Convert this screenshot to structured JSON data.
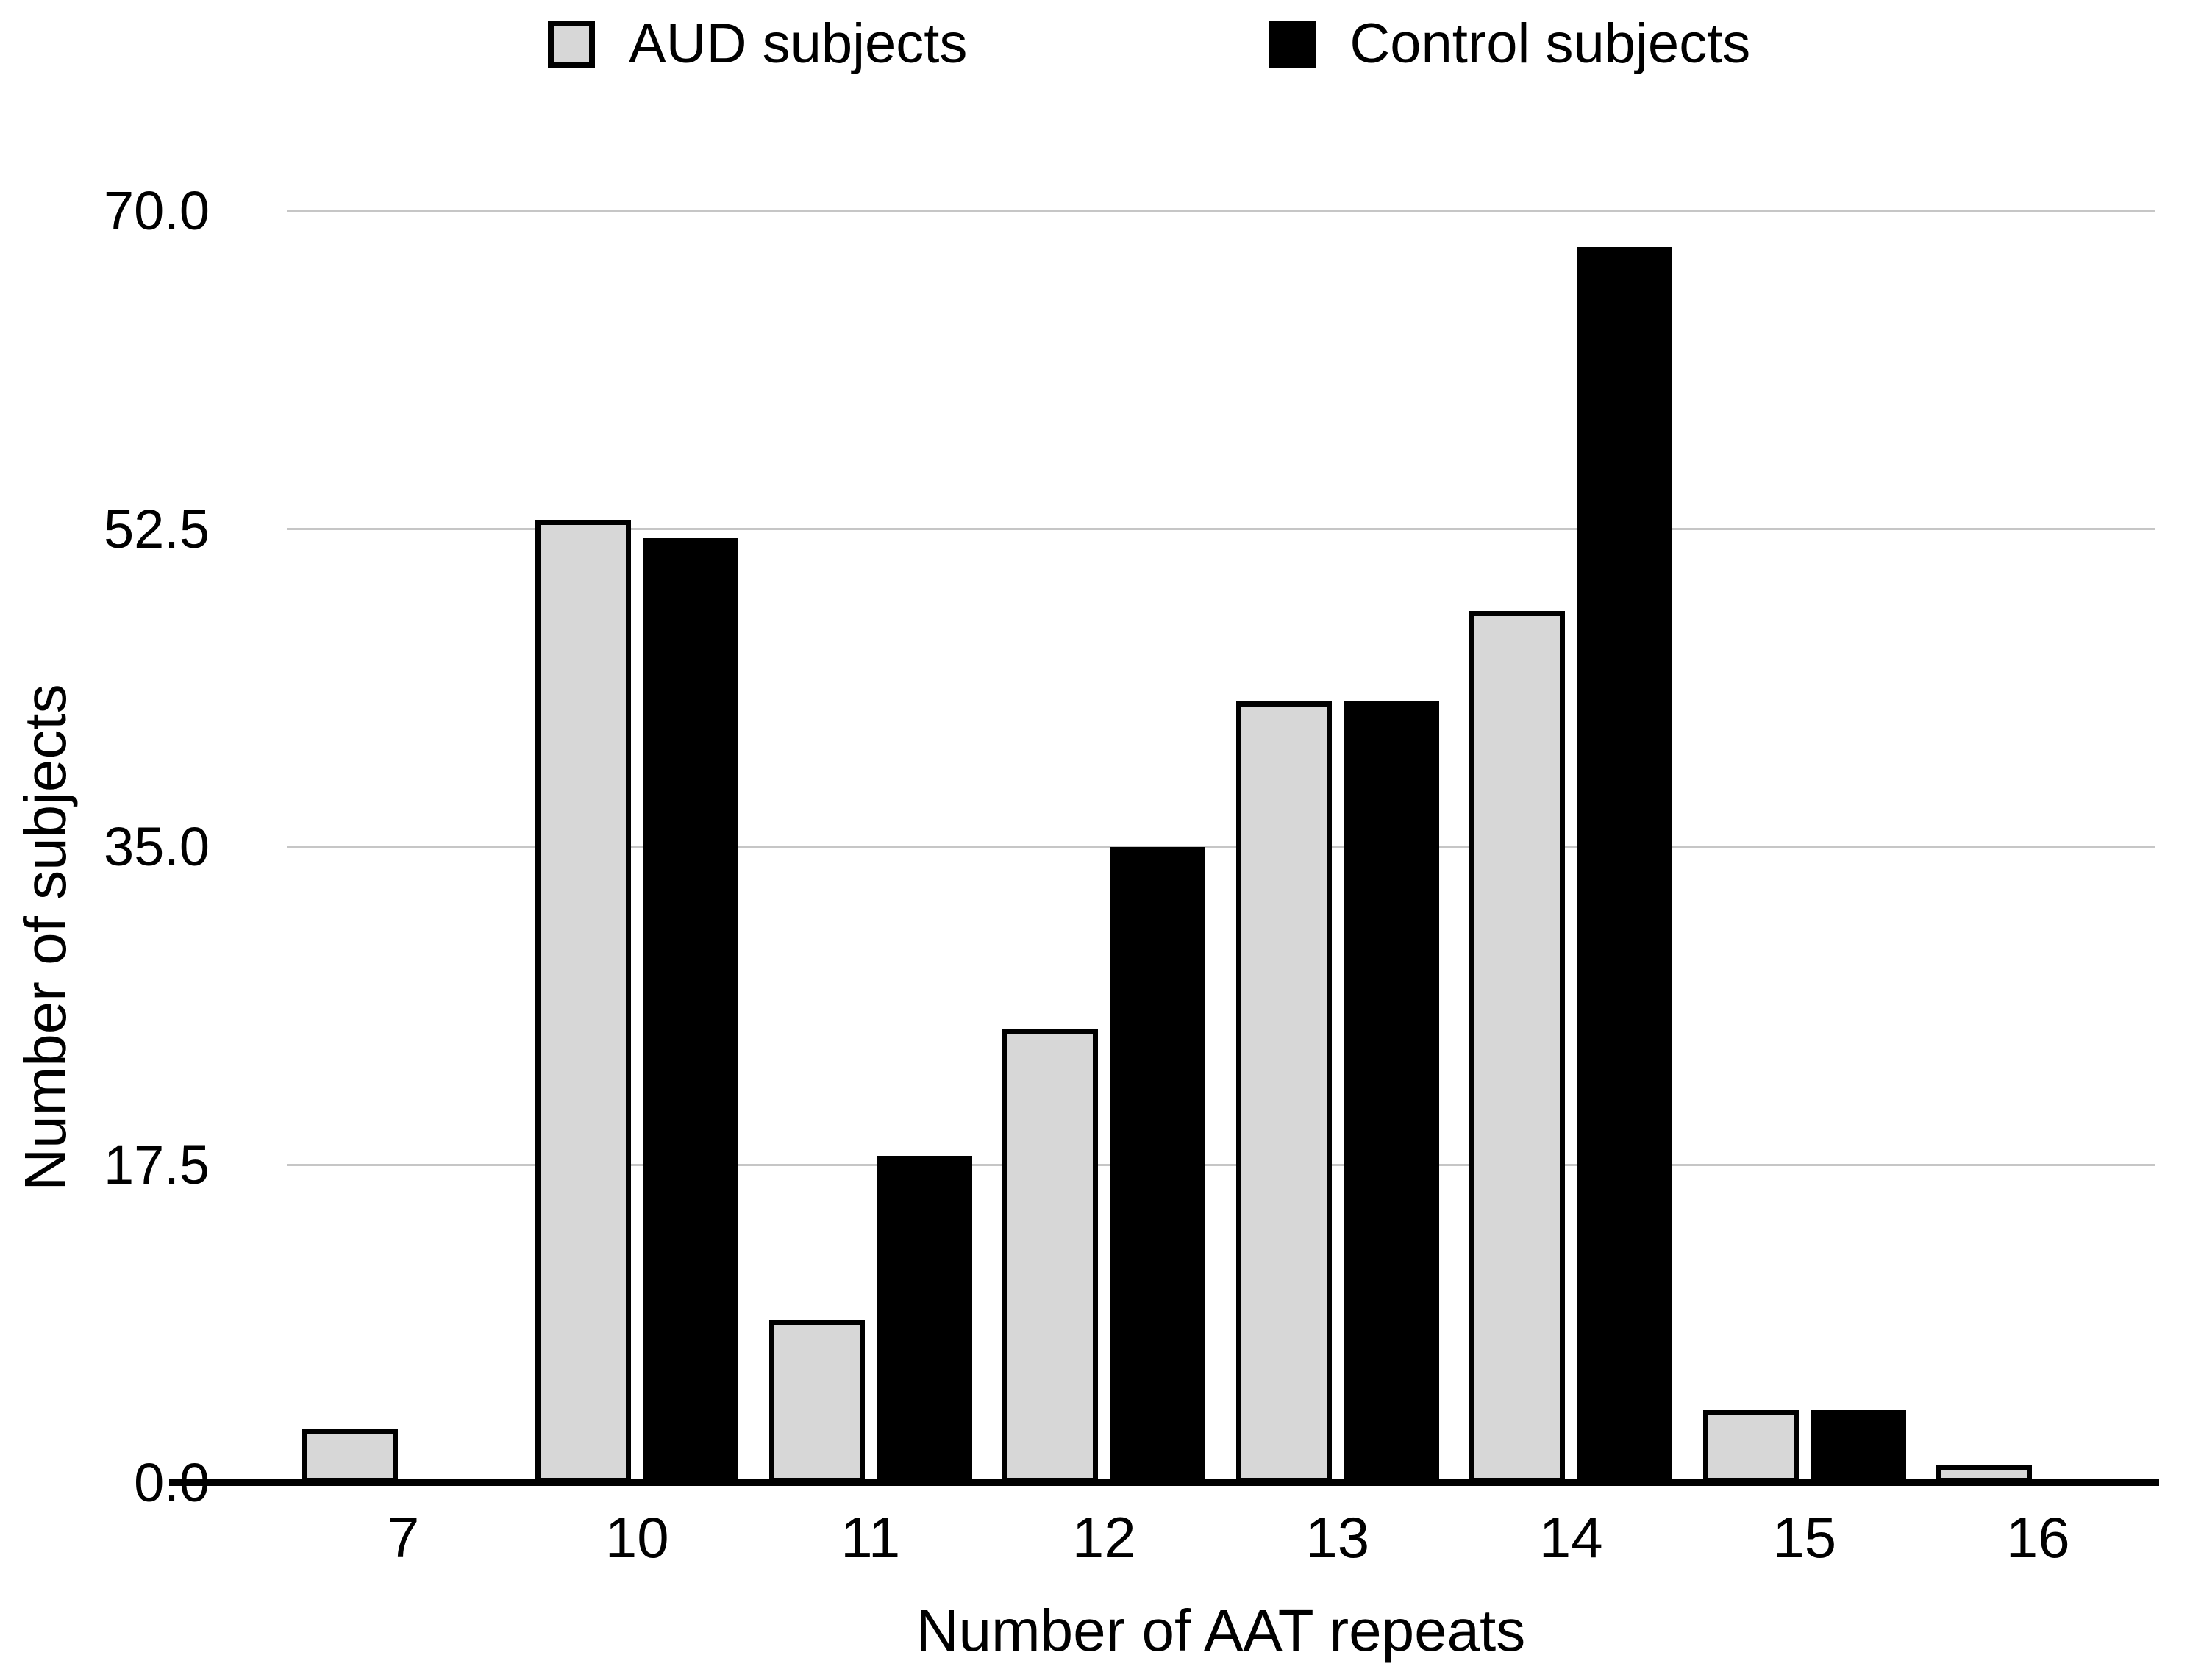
{
  "legend": {
    "items": [
      {
        "label": "AUD subjects",
        "marker_color": "#d7d7d7",
        "marker_border": "#000000"
      },
      {
        "label": "Control subjects",
        "marker_color": "#000000",
        "marker_border": "#000000"
      }
    ]
  },
  "axes": {
    "ylabel": "Number of subjects",
    "xlabel": "Number of AAT repeats"
  },
  "chart_data": {
    "type": "bar",
    "title": "",
    "xlabel": "Number of AAT repeats",
    "ylabel": "Number of subjects",
    "categories": [
      "7",
      "10",
      "11",
      "12",
      "13",
      "14",
      "15",
      "16"
    ],
    "series": [
      {
        "name": "AUD subjects",
        "color": "#d7d7d7",
        "border_color": "#000000",
        "values": [
          3,
          53,
          9,
          25,
          43,
          48,
          4,
          1
        ]
      },
      {
        "name": "Control subjects",
        "color": "#000000",
        "border_color": "#000000",
        "values": [
          null,
          52,
          18,
          35,
          43,
          68,
          4,
          null
        ]
      }
    ],
    "ylim": [
      0,
      70
    ],
    "y_ticks": [
      0.0,
      17.5,
      35.0,
      52.5,
      70.0
    ],
    "y_tick_labels": [
      "0.0",
      "17.5",
      "35.0",
      "52.5",
      "70.0"
    ],
    "grid": "horizontal-gridlines-on",
    "legend_position": "top-center",
    "bar_colors": {
      "aud_fill": "#d7d7d7",
      "control_fill": "#000000",
      "gridline": "#c6c6c6",
      "axis_line": "#000000"
    }
  }
}
